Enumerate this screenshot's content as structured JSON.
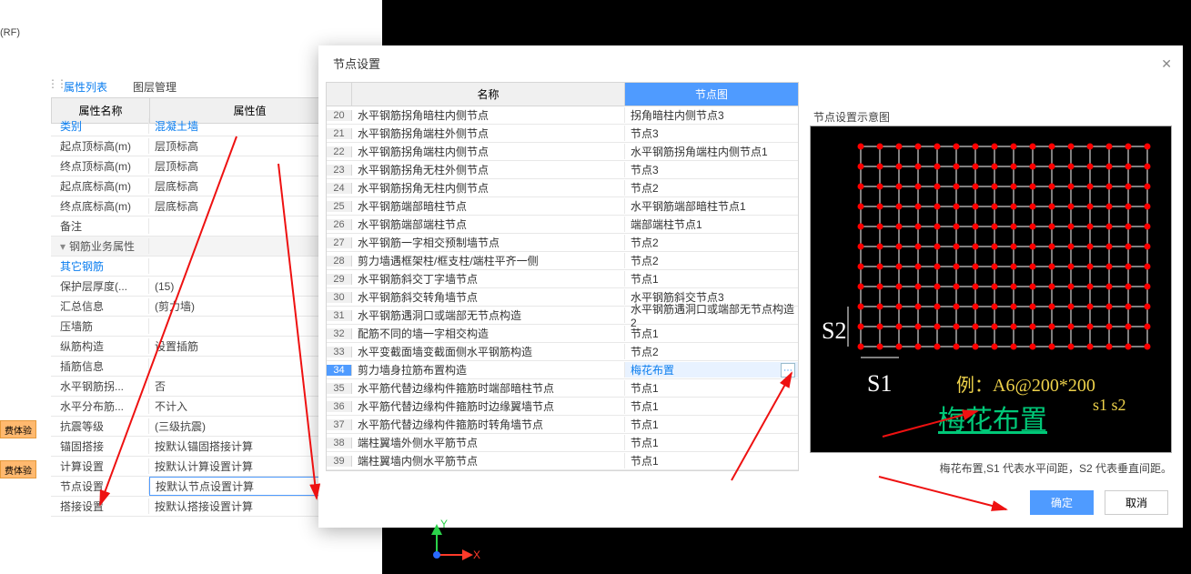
{
  "leftPane": {
    "rfLabel": "(RF)",
    "tabs": {
      "active": "属性列表",
      "b": "图层管理"
    },
    "header": {
      "name": "属性名称",
      "val": "属性值"
    },
    "rows": [
      {
        "name": "类别",
        "val": "混凝土墙",
        "link": true
      },
      {
        "name": "起点顶标高(m)",
        "val": "层顶标高"
      },
      {
        "name": "终点顶标高(m)",
        "val": "层顶标高"
      },
      {
        "name": "起点底标高(m)",
        "val": "层底标高"
      },
      {
        "name": "终点底标高(m)",
        "val": "层底标高"
      },
      {
        "name": "备注",
        "val": ""
      },
      {
        "name": "钢筋业务属性",
        "val": "",
        "group": true
      },
      {
        "name": "其它钢筋",
        "val": "",
        "link": true
      },
      {
        "name": "保护层厚度(...",
        "val": "(15)"
      },
      {
        "name": "汇总信息",
        "val": "(剪力墙)"
      },
      {
        "name": "压墙筋",
        "val": ""
      },
      {
        "name": "纵筋构造",
        "val": "设置插筋"
      },
      {
        "name": "插筋信息",
        "val": ""
      },
      {
        "name": "水平钢筋拐...",
        "val": "否"
      },
      {
        "name": "水平分布筋...",
        "val": "不计入"
      },
      {
        "name": "抗震等级",
        "val": "(三级抗震)"
      },
      {
        "name": "锚固搭接",
        "val": "按默认锚固搭接计算"
      },
      {
        "name": "计算设置",
        "val": "按默认计算设置计算"
      },
      {
        "name": "节点设置",
        "val": "按默认节点设置计算",
        "selected": true
      },
      {
        "name": "搭接设置",
        "val": "按默认搭接设置计算"
      }
    ],
    "orange": "费体验"
  },
  "dialog": {
    "title": "节点设置",
    "header": {
      "name": "名称",
      "node": "节点图"
    },
    "rows": [
      {
        "n": 20,
        "name": "水平钢筋拐角暗柱内侧节点",
        "node": "拐角暗柱内侧节点3"
      },
      {
        "n": 21,
        "name": "水平钢筋拐角端柱外侧节点",
        "node": "节点3"
      },
      {
        "n": 22,
        "name": "水平钢筋拐角端柱内侧节点",
        "node": "水平钢筋拐角端柱内侧节点1"
      },
      {
        "n": 23,
        "name": "水平钢筋拐角无柱外侧节点",
        "node": "节点3"
      },
      {
        "n": 24,
        "name": "水平钢筋拐角无柱内侧节点",
        "node": "节点2"
      },
      {
        "n": 25,
        "name": "水平钢筋端部暗柱节点",
        "node": "水平钢筋端部暗柱节点1"
      },
      {
        "n": 26,
        "name": "水平钢筋端部端柱节点",
        "node": "端部端柱节点1"
      },
      {
        "n": 27,
        "name": "水平钢筋一字相交预制墙节点",
        "node": "节点2"
      },
      {
        "n": 28,
        "name": "剪力墙遇框架柱/框支柱/端柱平齐一侧",
        "node": "节点2"
      },
      {
        "n": 29,
        "name": "水平钢筋斜交丁字墙节点",
        "node": "节点1"
      },
      {
        "n": 30,
        "name": "水平钢筋斜交转角墙节点",
        "node": "水平钢筋斜交节点3"
      },
      {
        "n": 31,
        "name": "水平钢筋遇洞口或端部无节点构造",
        "node": "水平钢筋遇洞口或端部无节点构造2"
      },
      {
        "n": 32,
        "name": "配筋不同的墙一字相交构造",
        "node": "节点1"
      },
      {
        "n": 33,
        "name": "水平变截面墙变截面侧水平钢筋构造",
        "node": "节点2"
      },
      {
        "n": 34,
        "name": "剪力墙身拉筋布置构造",
        "node": "梅花布置",
        "sel": true
      },
      {
        "n": 35,
        "name": "水平筋代替边缘构件箍筋时端部暗柱节点",
        "node": "节点1"
      },
      {
        "n": 36,
        "name": "水平筋代替边缘构件箍筋时边缘翼墙节点",
        "node": "节点1"
      },
      {
        "n": 37,
        "name": "水平筋代替边缘构件箍筋时转角墙节点",
        "node": "节点1"
      },
      {
        "n": 38,
        "name": "端柱翼墙外侧水平筋节点",
        "node": "节点1"
      },
      {
        "n": 39,
        "name": "端柱翼墙内侧水平筋节点",
        "node": "节点1"
      }
    ],
    "preview": {
      "label": "节点设置示意图",
      "s1": "S1",
      "s2": "S2",
      "example": "例：A6@200*200",
      "sub": "s1   s2",
      "green": "梅花布置",
      "desc": "梅花布置,S1 代表水平间距，S2 代表垂直间距。",
      "grid": {
        "cols": 16,
        "rows": 11,
        "dotColor": "#ff0000",
        "lineColor": "#ffffff"
      }
    },
    "ok": "确定",
    "cancel": "取消"
  },
  "coord": {
    "x": "X",
    "y": "Y"
  }
}
